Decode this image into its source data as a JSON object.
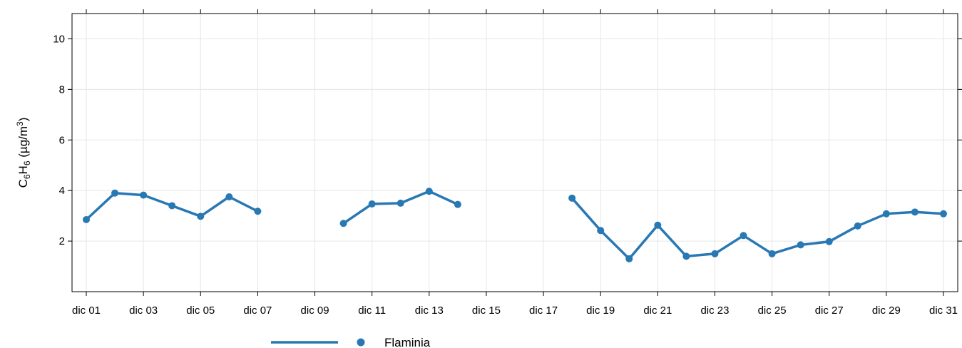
{
  "chart_data": {
    "type": "line",
    "ylabel": {
      "base": "C",
      "sub1": "6",
      "mid": "H",
      "sub2": "6",
      "unit": " (µg/m",
      "sup": "3",
      "close": ")"
    },
    "xlim": [
      1,
      31
    ],
    "ylim": [
      0,
      11
    ],
    "y_ticks": [
      2,
      4,
      6,
      8,
      10
    ],
    "x_ticks": [
      {
        "day": 1,
        "label": "dic 01"
      },
      {
        "day": 3,
        "label": "dic 03"
      },
      {
        "day": 5,
        "label": "dic 05"
      },
      {
        "day": 7,
        "label": "dic 07"
      },
      {
        "day": 9,
        "label": "dic 09"
      },
      {
        "day": 11,
        "label": "dic 11"
      },
      {
        "day": 13,
        "label": "dic 13"
      },
      {
        "day": 15,
        "label": "dic 15"
      },
      {
        "day": 17,
        "label": "dic 17"
      },
      {
        "day": 19,
        "label": "dic 19"
      },
      {
        "day": 21,
        "label": "dic 21"
      },
      {
        "day": 23,
        "label": "dic 23"
      },
      {
        "day": 25,
        "label": "dic 25"
      },
      {
        "day": 27,
        "label": "dic 27"
      },
      {
        "day": 29,
        "label": "dic 29"
      },
      {
        "day": 31,
        "label": "dic 31"
      }
    ],
    "grid": true,
    "legend_position": "bottom",
    "series": [
      {
        "name": "Flaminia",
        "color": "#2878b4",
        "points": [
          [
            1,
            2.85
          ],
          [
            2,
            3.9
          ],
          [
            3,
            3.82
          ],
          [
            4,
            3.4
          ],
          [
            5,
            2.98
          ],
          [
            6,
            3.75
          ],
          [
            7,
            3.18
          ],
          [
            8,
            null
          ],
          [
            9,
            null
          ],
          [
            10,
            2.7
          ],
          [
            11,
            3.47
          ],
          [
            12,
            3.5
          ],
          [
            13,
            3.97
          ],
          [
            14,
            3.45
          ],
          [
            15,
            null
          ],
          [
            16,
            null
          ],
          [
            17,
            null
          ],
          [
            18,
            3.7
          ],
          [
            19,
            2.42
          ],
          [
            20,
            1.3
          ],
          [
            21,
            2.63
          ],
          [
            22,
            1.4
          ],
          [
            23,
            1.5
          ],
          [
            24,
            2.22
          ],
          [
            25,
            1.5
          ],
          [
            26,
            1.85
          ],
          [
            27,
            1.98
          ],
          [
            28,
            2.6
          ],
          [
            29,
            3.08
          ],
          [
            30,
            3.15
          ],
          [
            31,
            3.08
          ]
        ]
      }
    ]
  }
}
